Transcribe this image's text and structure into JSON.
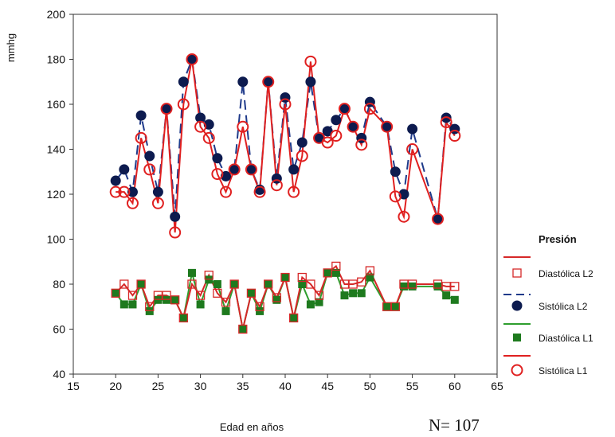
{
  "chart_data": {
    "type": "line",
    "xlabel": "Edad en años",
    "ylabel": "mmhg",
    "xlim": [
      15,
      65
    ],
    "ylim": [
      40,
      200
    ],
    "xticks": [
      "15",
      "20",
      "25",
      "30",
      "35",
      "40",
      "45",
      "50",
      "55",
      "60",
      "65"
    ],
    "yticks": [
      "40",
      "60",
      "80",
      "100",
      "120",
      "140",
      "160",
      "180",
      "200"
    ],
    "legend_title": "Presión",
    "legend_position": "right",
    "note": "N= 107",
    "series": [
      {
        "name": "Diastólica L2",
        "color": "#d62828",
        "line": "solid",
        "marker": "open-square",
        "x": [
          20,
          21,
          22,
          23,
          24,
          25,
          26,
          27,
          28,
          29,
          30,
          31,
          32,
          33,
          34,
          35,
          36,
          37,
          38,
          39,
          40,
          41,
          42,
          43,
          44,
          45,
          46,
          47,
          48,
          49,
          50,
          52,
          53,
          54,
          55,
          58,
          59,
          60
        ],
        "y": [
          76,
          80,
          75,
          80,
          70,
          75,
          75,
          73,
          65,
          80,
          75,
          84,
          76,
          72,
          80,
          60,
          76,
          70,
          80,
          74,
          83,
          65,
          83,
          80,
          75,
          85,
          88,
          80,
          80,
          81,
          86,
          70,
          70,
          80,
          80,
          80,
          79,
          79
        ]
      },
      {
        "name": "Sistólica L2",
        "color": "#1f3a8a",
        "line": "dashed",
        "marker": "filled-circle",
        "x": [
          20,
          21,
          22,
          23,
          24,
          25,
          26,
          27,
          28,
          29,
          30,
          31,
          32,
          33,
          34,
          35,
          36,
          37,
          38,
          39,
          40,
          41,
          42,
          43,
          44,
          45,
          46,
          47,
          48,
          49,
          50,
          52,
          53,
          54,
          55,
          58,
          59,
          60
        ],
        "y": [
          126,
          131,
          121,
          155,
          137,
          121,
          158,
          110,
          170,
          180,
          154,
          151,
          136,
          128,
          131,
          170,
          131,
          122,
          170,
          127,
          163,
          131,
          143,
          170,
          145,
          148,
          153,
          158,
          150,
          145,
          161,
          150,
          130,
          120,
          149,
          109,
          154,
          149
        ]
      },
      {
        "name": "Diastólica L1",
        "color": "#2e9e2e",
        "line": "solid",
        "marker": "filled-square",
        "x": [
          20,
          21,
          22,
          23,
          24,
          25,
          26,
          27,
          28,
          29,
          30,
          31,
          32,
          33,
          34,
          35,
          36,
          37,
          38,
          39,
          40,
          41,
          42,
          43,
          44,
          45,
          46,
          47,
          48,
          49,
          50,
          52,
          53,
          54,
          55,
          58,
          59,
          60
        ],
        "y": [
          76,
          71,
          71,
          80,
          68,
          73,
          73,
          73,
          65,
          85,
          71,
          82,
          80,
          68,
          80,
          60,
          76,
          68,
          80,
          73,
          83,
          65,
          80,
          71,
          72,
          85,
          85,
          75,
          76,
          76,
          83,
          70,
          70,
          79,
          79,
          79,
          75,
          73
        ]
      },
      {
        "name": "Sistólica L1",
        "color": "#e02020",
        "line": "solid",
        "marker": "open-circle",
        "x": [
          20,
          21,
          22,
          23,
          24,
          25,
          26,
          27,
          28,
          29,
          30,
          31,
          32,
          33,
          34,
          35,
          36,
          37,
          38,
          39,
          40,
          41,
          42,
          43,
          44,
          45,
          46,
          47,
          48,
          49,
          50,
          52,
          53,
          54,
          55,
          58,
          59,
          60
        ],
        "y": [
          121,
          121,
          116,
          145,
          131,
          116,
          158,
          103,
          160,
          180,
          150,
          145,
          129,
          121,
          131,
          150,
          131,
          121,
          170,
          124,
          160,
          121,
          137,
          179,
          145,
          143,
          146,
          158,
          150,
          142,
          158,
          150,
          119,
          110,
          140,
          109,
          152,
          146
        ]
      }
    ]
  }
}
